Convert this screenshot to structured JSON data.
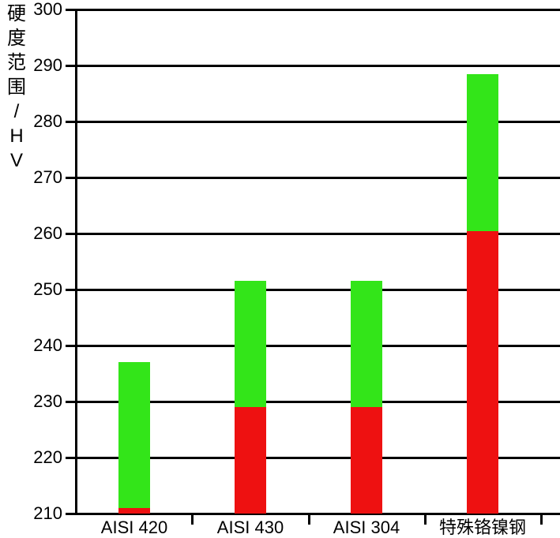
{
  "chart_data": {
    "type": "bar",
    "stacked": true,
    "title": "",
    "ylabel": "硬度范围/HV",
    "ylabel_chars": [
      "硬",
      "度",
      "范",
      "围",
      "/",
      "H",
      "V"
    ],
    "xlabel": "",
    "categories": [
      "AISI 420",
      "AISI 430",
      "AISI 304",
      "特殊铬镍钢"
    ],
    "yticks": [
      210,
      220,
      230,
      240,
      250,
      260,
      270,
      280,
      290,
      300
    ],
    "ylim": [
      210,
      300
    ],
    "grid": true,
    "legend": "none",
    "series": [
      {
        "name": "lower-range-red",
        "color": "#ee1111",
        "from": [
          210,
          210,
          210,
          210
        ],
        "to": [
          211,
          229,
          229,
          260.5
        ]
      },
      {
        "name": "upper-range-green",
        "color": "#33e519",
        "from": [
          211,
          229,
          229,
          260.5
        ],
        "to": [
          237,
          251.5,
          251.5,
          288.5
        ]
      }
    ]
  },
  "colors": {
    "axis": "#000000",
    "background": "#ffffff",
    "bar_red": "#ee1111",
    "bar_green": "#33e519"
  }
}
